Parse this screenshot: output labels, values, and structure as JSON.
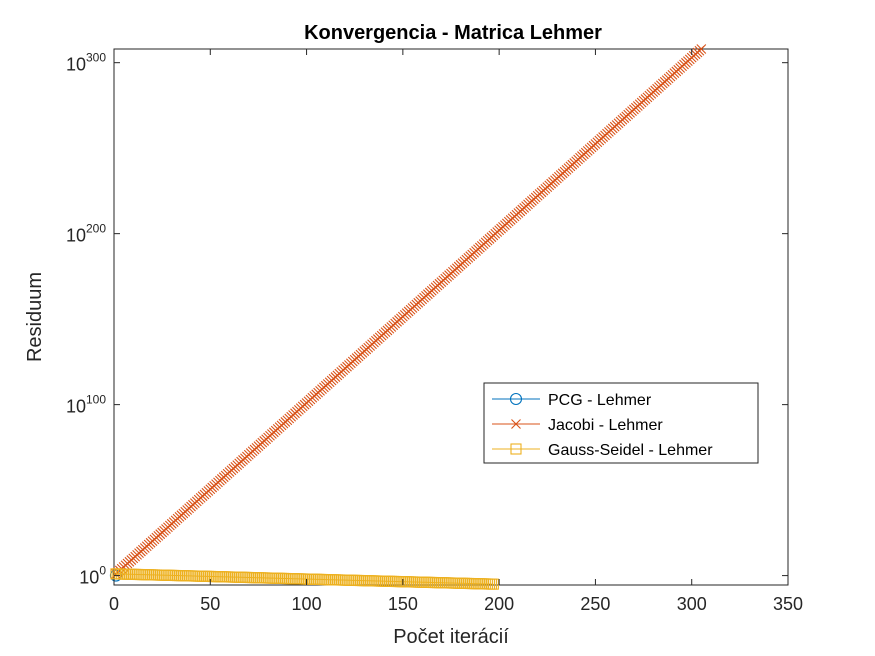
{
  "chart_data": {
    "type": "line",
    "title": "Konvergencia - Matrica Lehmer",
    "xlabel": "Počet iterácií",
    "ylabel": "Residuum",
    "xlim": [
      0,
      350
    ],
    "ylim_log10": [
      -5.5,
      308
    ],
    "yscale": "log",
    "x_ticks": [
      0,
      50,
      100,
      150,
      200,
      250,
      300,
      350
    ],
    "y_ticks": [
      {
        "base": "10",
        "exp": "0",
        "log10": 0
      },
      {
        "base": "10",
        "exp": "100",
        "log10": 100
      },
      {
        "base": "10",
        "exp": "200",
        "log10": 200
      },
      {
        "base": "10",
        "exp": "300",
        "log10": 300
      }
    ],
    "legend_position": "right-middle",
    "series": [
      {
        "name": "PCG - Lehmer",
        "color": "#0072BD",
        "marker": "circle",
        "points": [
          [
            1,
            0.01
          ]
        ]
      },
      {
        "name": "Jacobi - Lehmer",
        "color": "#D95319",
        "marker": "x",
        "x_start": 1,
        "x_end": 305,
        "log10_start": 1.0,
        "log10_end": 308
      },
      {
        "name": "Gauss-Seidel - Lehmer",
        "color": "#EDB120",
        "marker": "square",
        "x_start": 1,
        "x_end": 197,
        "log10_start": 1.0,
        "log10_end": -5.0
      }
    ]
  }
}
